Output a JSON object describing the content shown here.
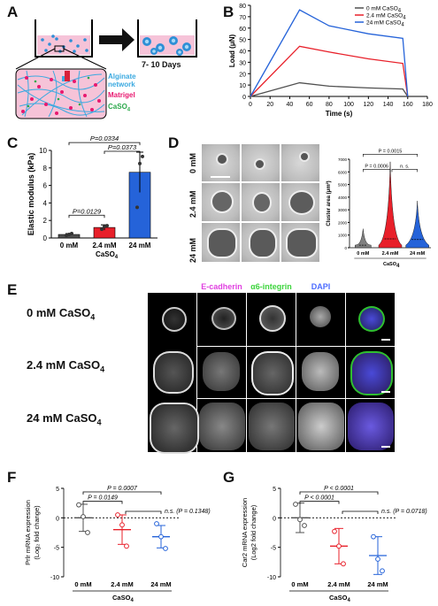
{
  "panels": {
    "a": "A",
    "b": "B",
    "c": "C",
    "d": "D",
    "e": "E",
    "f": "F",
    "g": "G"
  },
  "panel_a": {
    "alginate": "Alginate network",
    "matrigel": "Matrigel",
    "caso4": "CaSO",
    "caso4_sub": "4",
    "days": "7- 10 Days",
    "colors": {
      "alginate": "#3aa9e0",
      "matrigel": "#e8196f",
      "caso4": "#2aa84a",
      "dish_fill": "#f6c3d8"
    }
  },
  "panel_d_micro": {
    "rows": [
      "0 mM",
      "2.4 mM",
      "24 mM"
    ]
  },
  "panel_e": {
    "headers": [
      "E-cadherin",
      "α6-integrin",
      "DAPI"
    ],
    "header_colors": [
      "#e040e0",
      "#3dd43d",
      "#4b6bff"
    ],
    "rows": [
      "0 mM CaSO",
      "2.4 mM CaSO",
      "24 mM CaSO"
    ],
    "row_sub": "4"
  },
  "chart_data": [
    {
      "id": "B",
      "type": "line",
      "xlabel": "Time (s)",
      "ylabel": "Load (μN)",
      "xlim": [
        0,
        180
      ],
      "ylim": [
        0,
        80
      ],
      "xticks": [
        0,
        20,
        40,
        60,
        80,
        100,
        120,
        140,
        160,
        180
      ],
      "yticks": [
        0,
        10,
        20,
        30,
        40,
        50,
        60,
        70,
        80
      ],
      "legend_position": "top-right",
      "series": [
        {
          "name": "0 mM CaSO",
          "sub": "4",
          "color": "#505050",
          "x": [
            0,
            50,
            80,
            120,
            155,
            160
          ],
          "y": [
            0,
            12,
            9,
            7.5,
            6.5,
            0
          ]
        },
        {
          "name": "2.4 mM CaSO",
          "sub": "4",
          "color": "#e8202a",
          "x": [
            0,
            50,
            80,
            120,
            155,
            160
          ],
          "y": [
            0,
            44,
            39,
            33,
            29,
            0
          ]
        },
        {
          "name": "24 mM CaSO",
          "sub": "4",
          "color": "#2563d9",
          "x": [
            0,
            50,
            80,
            120,
            155,
            160
          ],
          "y": [
            0,
            76,
            62,
            55,
            51,
            0
          ]
        }
      ]
    },
    {
      "id": "C",
      "type": "bar",
      "ylabel": "Elastic modulus (kPa)",
      "xlabel": "CaSO",
      "xlabel_sub": "4",
      "ylim": [
        0,
        10
      ],
      "yticks": [
        0,
        2,
        4,
        6,
        8,
        10
      ],
      "categories": [
        "0 mM",
        "2.4 mM",
        "24 mM"
      ],
      "values": [
        0.4,
        1.2,
        7.5
      ],
      "errors": [
        0.1,
        0.3,
        2.3
      ],
      "colors": [
        "#505050",
        "#e8202a",
        "#2563d9"
      ],
      "points": [
        [
          0.3,
          0.4,
          0.5
        ],
        [
          1.0,
          1.3,
          1.4
        ],
        [
          3.5,
          8.5,
          9.3
        ]
      ],
      "annotations": [
        {
          "text": "P=0.0334",
          "pair": [
            0,
            2
          ],
          "level": 10.9
        },
        {
          "text": "P=0.0373",
          "pair": [
            1,
            2
          ],
          "level": 9.9
        },
        {
          "text": "P=0.0129",
          "pair": [
            0,
            1
          ],
          "level": 2.6
        }
      ]
    },
    {
      "id": "D",
      "type": "violin",
      "ylabel": "Cluster area (μm²)",
      "xlabel": "CaSO",
      "xlabel_sub": "4",
      "ylim": [
        0,
        7000
      ],
      "yticks": [
        0,
        1000,
        2000,
        3000,
        4000,
        5000,
        6000,
        7000
      ],
      "categories": [
        "0 mM",
        "2.4 mM",
        "24 mM"
      ],
      "medians": [
        200,
        700,
        650
      ],
      "maxima": [
        1500,
        6800,
        3700
      ],
      "colors": [
        "#808080",
        "#e8202a",
        "#2563d9"
      ],
      "annotations": [
        {
          "text": "P = 0.0015",
          "pair": [
            0,
            2
          ],
          "level": 7400
        },
        {
          "text": "P = 0.0006",
          "pair": [
            0,
            1
          ],
          "level": 6200
        },
        {
          "text": "n. s.",
          "pair": [
            1,
            2
          ],
          "level": 6200
        }
      ]
    },
    {
      "id": "F",
      "type": "scatter",
      "ylabel": "Prlr mRNA expression",
      "ylabel2": "(Log₂ fold change)",
      "xlabel": "CaSO",
      "xlabel_sub": "4",
      "ylim": [
        -10,
        5
      ],
      "yticks": [
        5,
        0,
        -5,
        -10
      ],
      "categories": [
        "0 mM",
        "2.4 mM",
        "24 mM"
      ],
      "means": [
        0,
        -2,
        -3.2
      ],
      "sd": [
        2.3,
        2.5,
        1.9
      ],
      "colors": [
        "#505050",
        "#e8202a",
        "#2563d9"
      ],
      "points": [
        [
          2.2,
          0.2,
          -2.5
        ],
        [
          0.5,
          -1.2,
          -4.8
        ],
        [
          -1.0,
          -3.2,
          -5.2
        ]
      ],
      "annotations": [
        {
          "text": "P = 0.0007",
          "pair": [
            0,
            2
          ],
          "level": 4.4
        },
        {
          "text": "P = 0.0149",
          "pair": [
            0,
            1
          ],
          "level": 2.8
        },
        {
          "text": "n.s. (P = 0.1348)",
          "pair": [
            1,
            2
          ],
          "level": 1.1
        }
      ]
    },
    {
      "id": "G",
      "type": "scatter",
      "ylabel": "Car2 mRNA expression",
      "ylabel2": "(Log2 fold change)",
      "xlabel": "CaSO",
      "xlabel_sub": "4",
      "ylim": [
        -10,
        5
      ],
      "yticks": [
        5,
        0,
        -5,
        -10
      ],
      "categories": [
        "0 mM",
        "2.4 mM",
        "24 mM"
      ],
      "means": [
        0,
        -4.8,
        -6.4
      ],
      "sd": [
        2.5,
        3.0,
        3.2
      ],
      "colors": [
        "#505050",
        "#e8202a",
        "#2563d9"
      ],
      "points": [
        [
          2.3,
          -0.3,
          -1.3
        ],
        [
          -2.3,
          -4.8,
          -7.8
        ],
        [
          -3.2,
          -7.0,
          -9.0
        ]
      ],
      "annotations": [
        {
          "text": "P < 0.0001",
          "pair": [
            0,
            2
          ],
          "level": 4.4
        },
        {
          "text": "P < 0.0001",
          "pair": [
            0,
            1
          ],
          "level": 2.8
        },
        {
          "text": "n.s. (P = 0.0718)",
          "pair": [
            1,
            2
          ],
          "level": 1.1
        }
      ]
    }
  ]
}
